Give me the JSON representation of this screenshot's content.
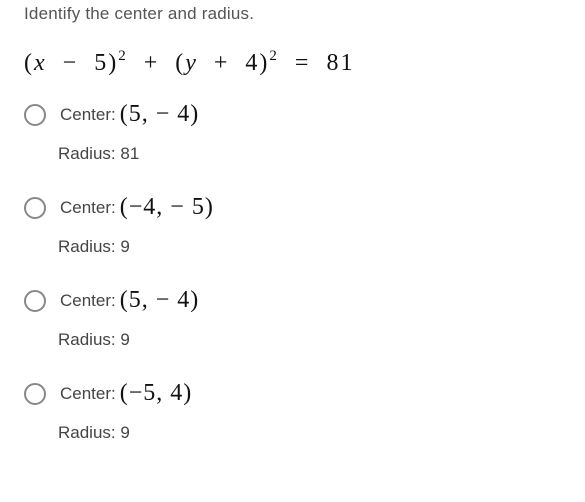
{
  "prompt": "Identify the center and radius.",
  "equation_html": "(<i>x</i> &nbsp;&minus;&nbsp; 5)<sup>2</sup> &nbsp;+&nbsp; (<i>y</i> &nbsp;+&nbsp; 4)<sup>2</sup> &nbsp;=&nbsp; 81",
  "center_label": "Center:",
  "options": [
    {
      "center": "(5,  − 4)",
      "radius": "Radius: 81"
    },
    {
      "center": "(−4,  − 5)",
      "radius": "Radius: 9"
    },
    {
      "center": "(5,  − 4)",
      "radius": "Radius: 9"
    },
    {
      "center": "(−5, 4)",
      "radius": "Radius: 9"
    }
  ],
  "colors": {
    "text": "#333333",
    "muted": "#555555",
    "math": "#111111",
    "radio_border": "#888888",
    "background": "#ffffff"
  },
  "fonts": {
    "base_pt": 13,
    "math_pt": 18
  }
}
